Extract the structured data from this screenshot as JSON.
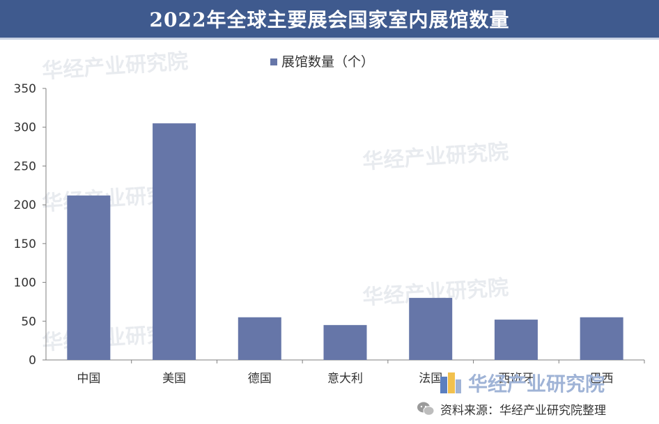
{
  "title": "2022年全球主要展会国家室内展馆数量",
  "watermark_text": "华经产业研究院",
  "source_text": "资料来源：华经产业研究院整理",
  "brand_text": "华经产业研究院",
  "colors": {
    "title_bg": "#3f5a8e",
    "bar": "#6676a8",
    "axis": "#7f7f7f"
  },
  "icons": [
    "wechat-icon",
    "brand-logo-icon",
    "legend-swatch-icon"
  ],
  "chart_data": {
    "type": "bar",
    "categories": [
      "中国",
      "美国",
      "德国",
      "意大利",
      "法国",
      "西班牙",
      "巴西"
    ],
    "series": [
      {
        "name": "展馆数量（个）",
        "values": [
          212,
          305,
          55,
          45,
          80,
          52,
          55
        ]
      }
    ],
    "yticks": [
      "0",
      "50",
      "100",
      "150",
      "200",
      "250",
      "300",
      "350"
    ],
    "ylim": [
      0,
      350
    ],
    "legend_position": "top-center",
    "grid": false
  }
}
